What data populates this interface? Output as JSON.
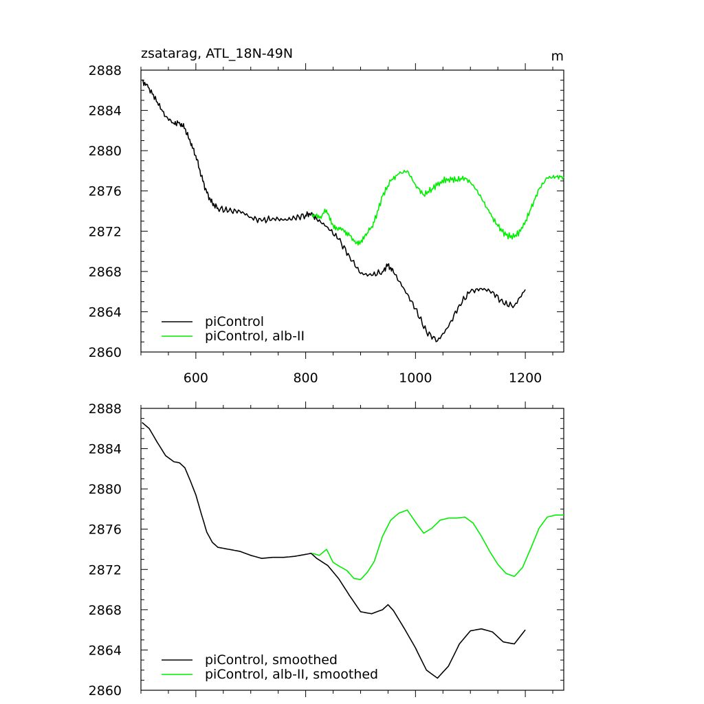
{
  "colors": {
    "control": "#000000",
    "alb": "#00ee00"
  },
  "chart_data": [
    {
      "type": "line",
      "title": "zsatarag, ATL_18N-49N",
      "units": "m",
      "xlabel": "",
      "ylabel": "",
      "xlim": [
        500,
        1270
      ],
      "ylim": [
        2860,
        2888
      ],
      "xticks": [
        600,
        800,
        1000,
        1200
      ],
      "xtick_labels": [
        "600",
        "800",
        "1000",
        "1200"
      ],
      "yticks": [
        2860,
        2864,
        2868,
        2872,
        2876,
        2880,
        2884,
        2888
      ],
      "ytick_labels": [
        "2860",
        "2864",
        "2868",
        "2872",
        "2876",
        "2880",
        "2884",
        "2888"
      ],
      "show_xtick_labels": true,
      "legend_position": "bottom-left",
      "smoothed": false,
      "series": [
        {
          "name": "piControl",
          "color_key": "control",
          "x": [
            502,
            515,
            530,
            545,
            560,
            570,
            580,
            590,
            600,
            610,
            620,
            630,
            640,
            660,
            680,
            700,
            720,
            740,
            760,
            780,
            800,
            810,
            820,
            840,
            860,
            880,
            900,
            920,
            940,
            950,
            960,
            980,
            1000,
            1020,
            1040,
            1060,
            1080,
            1100,
            1120,
            1140,
            1160,
            1180,
            1200
          ],
          "y": [
            2887.0,
            2886.2,
            2884.8,
            2883.4,
            2882.7,
            2882.8,
            2882.2,
            2880.8,
            2879.5,
            2877.5,
            2875.8,
            2874.8,
            2874.3,
            2874.0,
            2874.0,
            2873.4,
            2873.0,
            2873.3,
            2873.1,
            2873.3,
            2873.6,
            2873.8,
            2873.2,
            2872.4,
            2871.2,
            2869.5,
            2867.8,
            2867.6,
            2868.0,
            2868.7,
            2867.9,
            2866.2,
            2864.3,
            2862.0,
            2861.1,
            2862.5,
            2864.7,
            2866.0,
            2866.3,
            2866.0,
            2864.8,
            2864.6,
            2866.2
          ]
        },
        {
          "name": "piControl, alb-II",
          "color_key": "alb",
          "x": [
            812,
            825,
            838,
            850,
            862,
            875,
            888,
            900,
            912,
            925,
            940,
            955,
            970,
            985,
            1000,
            1015,
            1030,
            1045,
            1060,
            1075,
            1090,
            1105,
            1120,
            1135,
            1150,
            1165,
            1180,
            1195,
            1210,
            1225,
            1240,
            1255,
            1270
          ],
          "y": [
            2873.7,
            2873.3,
            2874.1,
            2872.6,
            2872.2,
            2871.9,
            2871.0,
            2870.9,
            2871.8,
            2872.9,
            2875.5,
            2877.0,
            2877.7,
            2878.0,
            2876.6,
            2875.6,
            2876.2,
            2876.9,
            2877.2,
            2877.1,
            2877.3,
            2876.6,
            2875.3,
            2873.8,
            2872.5,
            2871.6,
            2871.4,
            2872.3,
            2874.2,
            2876.2,
            2877.3,
            2877.4,
            2877.4
          ]
        }
      ]
    },
    {
      "type": "line",
      "title": "",
      "units": "",
      "xlabel": "",
      "ylabel": "",
      "xlim": [
        500,
        1270
      ],
      "ylim": [
        2860,
        2888
      ],
      "xticks": [
        600,
        800,
        1000,
        1200
      ],
      "xtick_labels": [
        "",
        "",
        "",
        ""
      ],
      "yticks": [
        2860,
        2864,
        2868,
        2872,
        2876,
        2880,
        2884,
        2888
      ],
      "ytick_labels": [
        "2860",
        "2864",
        "2868",
        "2872",
        "2876",
        "2880",
        "2884",
        "2888"
      ],
      "show_xtick_labels": false,
      "legend_position": "bottom-left",
      "smoothed": true,
      "series": [
        {
          "name": "piControl, smoothed",
          "color_key": "control",
          "x": [
            502,
            515,
            530,
            545,
            560,
            570,
            580,
            590,
            600,
            610,
            620,
            630,
            640,
            660,
            680,
            700,
            720,
            740,
            760,
            780,
            800,
            810,
            820,
            840,
            860,
            880,
            900,
            920,
            940,
            950,
            960,
            980,
            1000,
            1020,
            1040,
            1060,
            1080,
            1100,
            1120,
            1140,
            1160,
            1180,
            1200
          ],
          "y": [
            2886.6,
            2886.0,
            2884.6,
            2883.3,
            2882.7,
            2882.6,
            2882.1,
            2880.8,
            2879.4,
            2877.5,
            2875.7,
            2874.7,
            2874.2,
            2874.0,
            2873.8,
            2873.4,
            2873.1,
            2873.2,
            2873.2,
            2873.3,
            2873.5,
            2873.6,
            2873.1,
            2872.4,
            2871.1,
            2869.4,
            2867.8,
            2867.6,
            2868.0,
            2868.5,
            2867.9,
            2866.1,
            2864.2,
            2862.0,
            2861.2,
            2862.4,
            2864.6,
            2865.9,
            2866.1,
            2865.8,
            2864.8,
            2864.6,
            2866.0
          ]
        },
        {
          "name": "piControl, alb-II, smoothed",
          "color_key": "alb",
          "x": [
            812,
            825,
            838,
            850,
            862,
            875,
            888,
            900,
            912,
            925,
            940,
            955,
            970,
            985,
            1000,
            1015,
            1030,
            1045,
            1060,
            1075,
            1090,
            1105,
            1120,
            1135,
            1150,
            1165,
            1180,
            1195,
            1210,
            1225,
            1240,
            1255,
            1270
          ],
          "y": [
            2873.6,
            2873.4,
            2874.0,
            2872.7,
            2872.3,
            2871.9,
            2871.1,
            2871.0,
            2871.7,
            2872.8,
            2875.3,
            2876.9,
            2877.6,
            2877.9,
            2876.7,
            2875.6,
            2876.1,
            2876.9,
            2877.1,
            2877.1,
            2877.2,
            2876.6,
            2875.3,
            2873.8,
            2872.5,
            2871.6,
            2871.3,
            2872.2,
            2874.1,
            2876.1,
            2877.2,
            2877.4,
            2877.4
          ]
        }
      ]
    }
  ]
}
